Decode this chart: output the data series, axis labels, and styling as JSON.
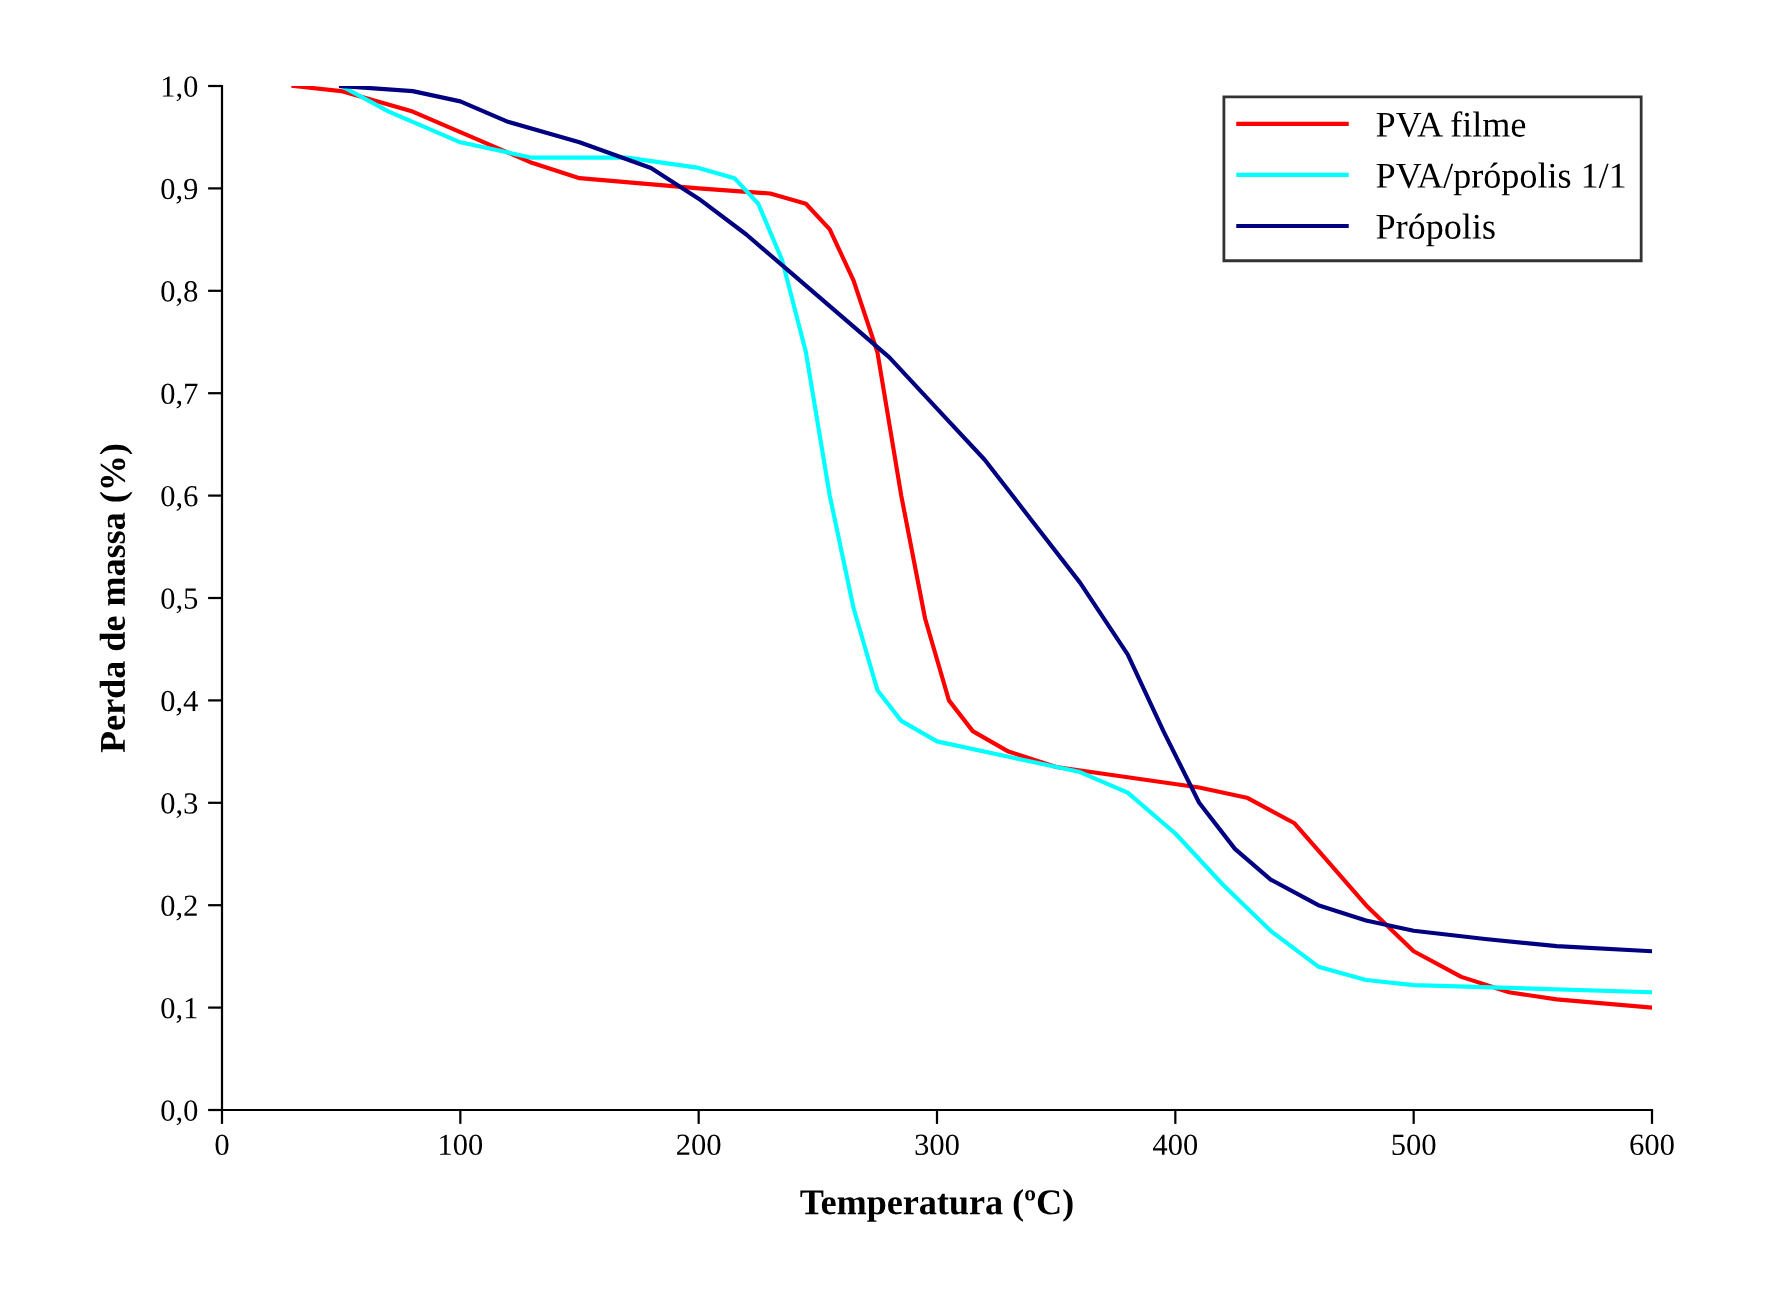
{
  "chart_data": {
    "type": "line",
    "xlabel": "Temperatura (ºC)",
    "ylabel": "Perda de massa (%)",
    "xlim": [
      0,
      600
    ],
    "xticks": [
      0,
      100,
      200,
      300,
      400,
      500,
      600
    ],
    "ylim": [
      0,
      1.0
    ],
    "yticks": [
      {
        "value": 0,
        "label": "0,0"
      },
      {
        "value": 0.1,
        "label": "0,1"
      },
      {
        "value": 0.2,
        "label": "0,2"
      },
      {
        "value": 0.3,
        "label": "0,3"
      },
      {
        "value": 0.4,
        "label": "0,4"
      },
      {
        "value": 0.5,
        "label": "0,5"
      },
      {
        "value": 0.6,
        "label": "0,6"
      },
      {
        "value": 0.7,
        "label": "0,7"
      },
      {
        "value": 0.8,
        "label": "0,8"
      },
      {
        "value": 0.9,
        "label": "0,9"
      },
      {
        "value": 1.0,
        "label": "1,0"
      }
    ],
    "grid": false,
    "legend": "top right",
    "marker": "none",
    "line_style": "solid",
    "series": [
      {
        "name": "PVA filme",
        "color": "#ff0000",
        "x": [
          30,
          50,
          80,
          100,
          130,
          150,
          200,
          230,
          245,
          255,
          265,
          275,
          285,
          295,
          305,
          315,
          330,
          350,
          380,
          410,
          430,
          450,
          465,
          480,
          500,
          520,
          540,
          560,
          600
        ],
        "values": [
          1.0,
          0.995,
          0.975,
          0.955,
          0.925,
          0.91,
          0.9,
          0.895,
          0.885,
          0.86,
          0.81,
          0.74,
          0.6,
          0.48,
          0.4,
          0.37,
          0.35,
          0.335,
          0.325,
          0.315,
          0.305,
          0.28,
          0.24,
          0.2,
          0.155,
          0.13,
          0.115,
          0.108,
          0.1
        ]
      },
      {
        "name": "PVA/própolis 1/1",
        "color": "#00ffff",
        "x": [
          50,
          70,
          100,
          130,
          170,
          200,
          215,
          225,
          235,
          245,
          255,
          265,
          275,
          285,
          300,
          330,
          360,
          380,
          400,
          420,
          440,
          460,
          480,
          500,
          600
        ],
        "values": [
          1.0,
          0.975,
          0.945,
          0.93,
          0.93,
          0.92,
          0.91,
          0.885,
          0.83,
          0.74,
          0.6,
          0.49,
          0.41,
          0.38,
          0.36,
          0.345,
          0.33,
          0.31,
          0.27,
          0.22,
          0.175,
          0.14,
          0.127,
          0.122,
          0.115
        ]
      },
      {
        "name": "Própolis",
        "color": "#000080",
        "x": [
          50,
          80,
          100,
          120,
          150,
          180,
          200,
          220,
          240,
          260,
          280,
          300,
          320,
          340,
          360,
          380,
          395,
          410,
          425,
          440,
          460,
          480,
          500,
          530,
          560,
          600
        ],
        "values": [
          1.0,
          0.995,
          0.985,
          0.965,
          0.945,
          0.92,
          0.89,
          0.855,
          0.815,
          0.775,
          0.735,
          0.685,
          0.635,
          0.575,
          0.515,
          0.445,
          0.37,
          0.3,
          0.255,
          0.225,
          0.2,
          0.185,
          0.175,
          0.167,
          0.16,
          0.155
        ]
      }
    ]
  }
}
